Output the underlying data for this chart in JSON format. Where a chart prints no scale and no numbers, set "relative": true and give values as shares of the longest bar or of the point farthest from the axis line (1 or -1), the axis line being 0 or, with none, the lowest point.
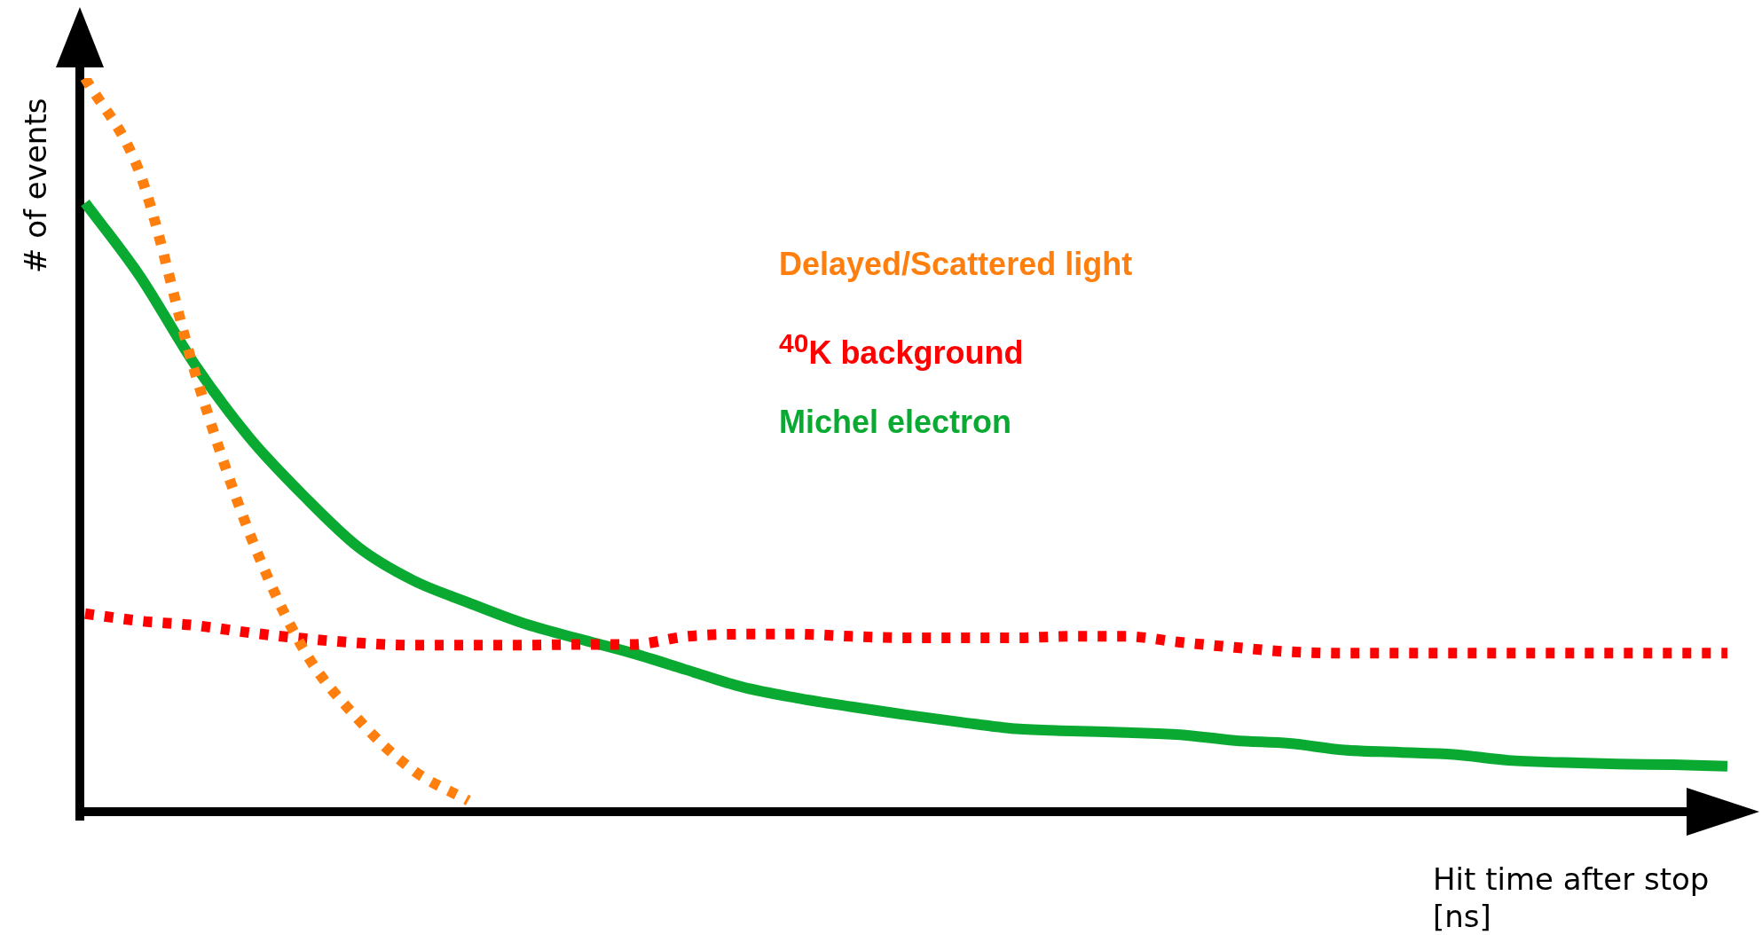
{
  "chart_data": {
    "type": "line",
    "relative": true,
    "xlabel": "Hit time after stop [ns]",
    "ylabel": "# of events",
    "legend": "top",
    "categories": [
      null,
      null,
      null,
      null,
      null,
      null,
      null,
      null,
      null,
      null,
      null,
      null,
      null,
      null,
      null,
      null,
      null,
      null,
      null,
      null,
      null,
      null,
      null,
      null,
      null,
      null,
      null,
      null,
      null,
      null,
      null
    ],
    "series": [
      {
        "name": "Delayed/Scattered light",
        "color": "#ff7f0e",
        "line_style": "dotted",
        "values": [
          1.0,
          0.87,
          0.6,
          0.38,
          0.22,
          0.125,
          0.056,
          0.015,
          null,
          null,
          null,
          null,
          null,
          null,
          null,
          null,
          null,
          null,
          null,
          null,
          null,
          null,
          null,
          null,
          null,
          null,
          null,
          null,
          null,
          null,
          null
        ]
      },
      {
        "name": "$^{40}$K background",
        "color": "#ff0000",
        "line_style": "dotted",
        "values": [
          0.27,
          0.26,
          0.254,
          0.244,
          0.236,
          0.23,
          0.227,
          0.227,
          0.227,
          0.228,
          0.228,
          0.239,
          0.242,
          0.242,
          0.239,
          0.237,
          0.237,
          0.237,
          0.239,
          0.239,
          0.231,
          0.224,
          0.218,
          0.216,
          0.216,
          0.216,
          0.216,
          0.216,
          0.216,
          0.216,
          0.216
        ]
      },
      {
        "name": "Michel electron",
        "color": "#0aaa32",
        "line_style": "solid",
        "values": [
          0.83,
          0.73,
          0.61,
          0.51,
          0.43,
          0.36,
          0.315,
          0.285,
          0.257,
          0.236,
          0.216,
          0.193,
          0.17,
          0.155,
          0.143,
          0.132,
          0.122,
          0.113,
          0.11,
          0.108,
          0.105,
          0.097,
          0.093,
          0.084,
          0.081,
          0.078,
          0.07,
          0.067,
          0.065,
          0.064,
          0.062
        ]
      }
    ]
  }
}
